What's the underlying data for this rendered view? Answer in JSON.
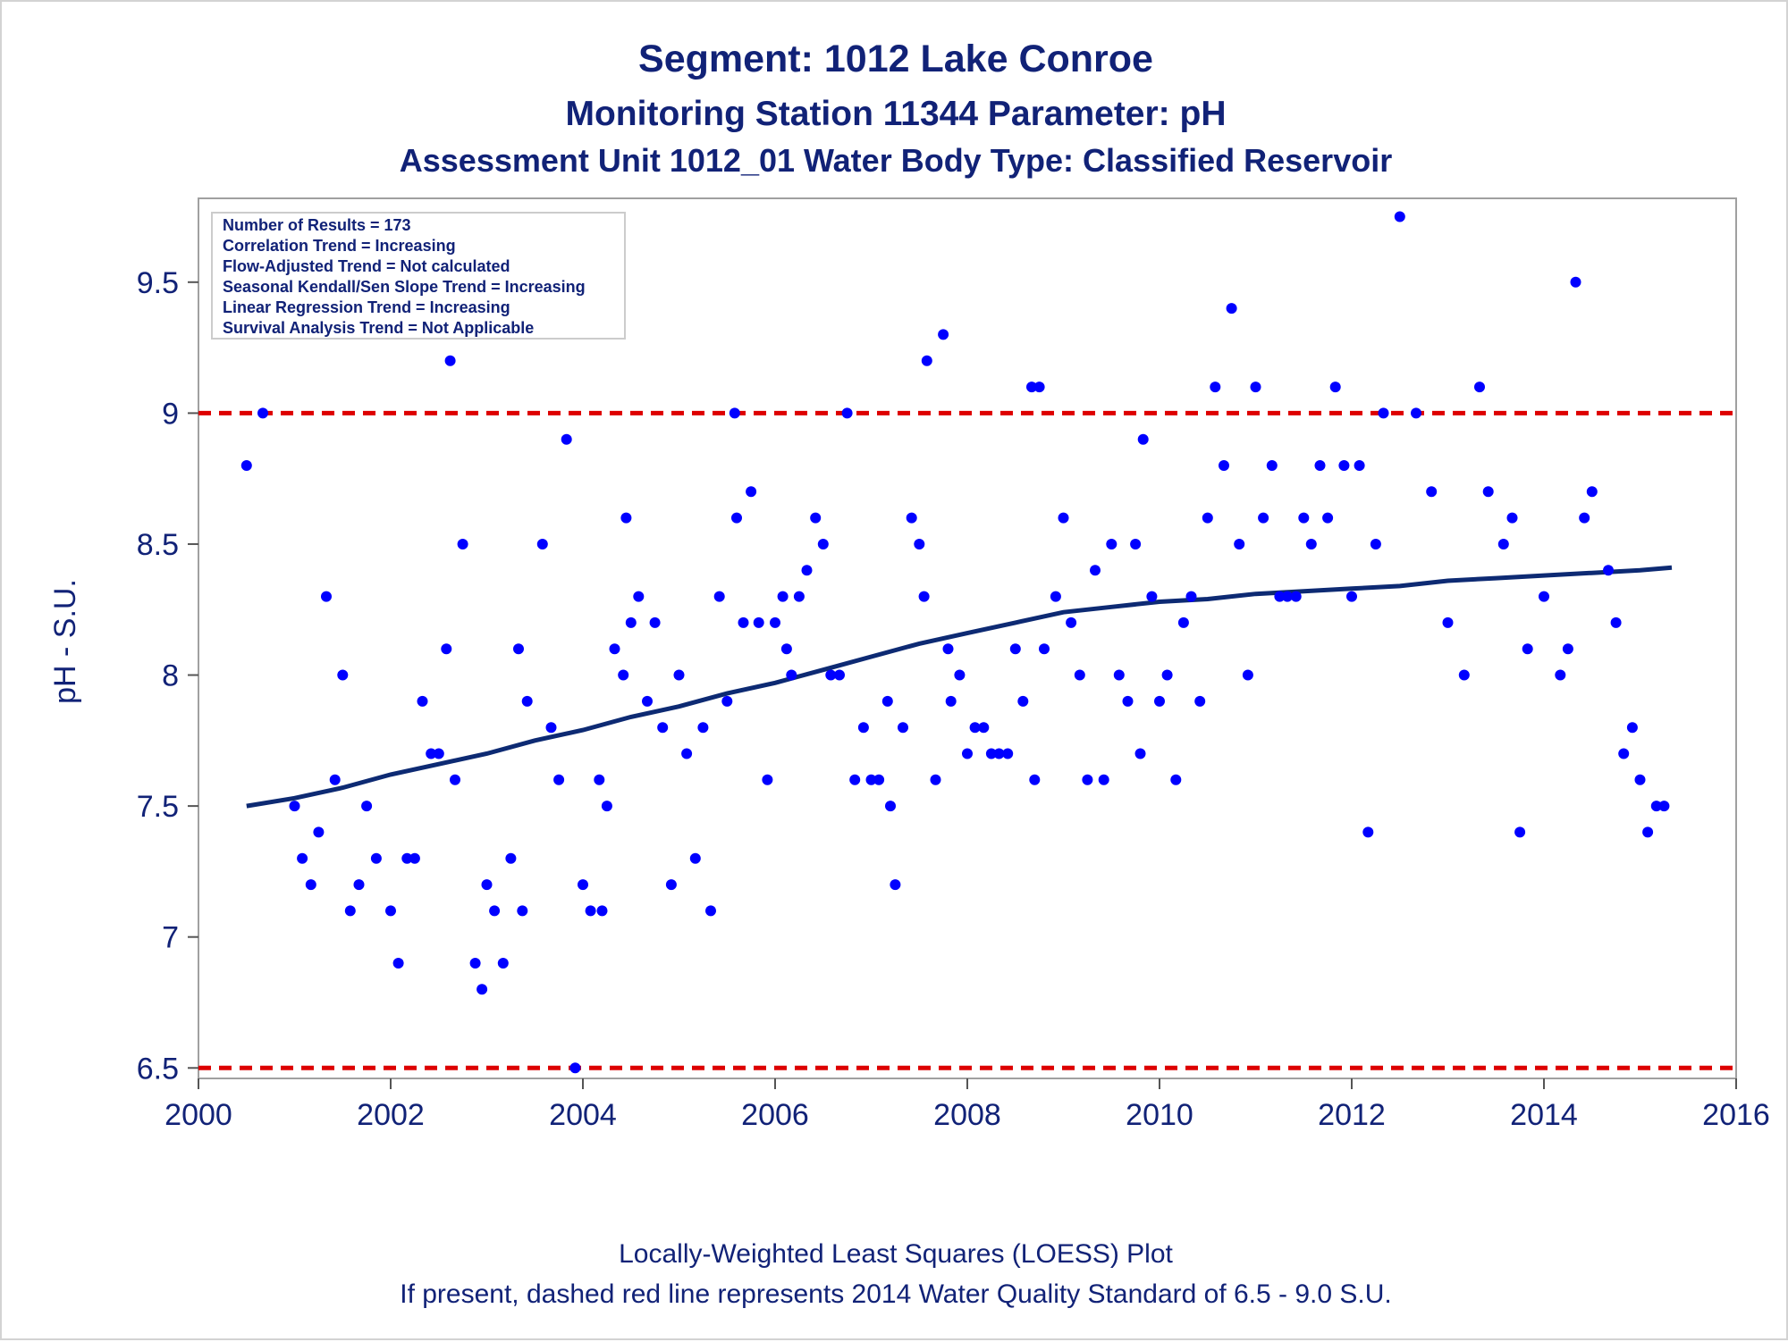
{
  "chart_data": {
    "type": "scatter",
    "title": "Segment: 1012  Lake Conroe",
    "subtitle1": "Monitoring Station 11344 Parameter: pH",
    "subtitle2": "Assessment Unit 1012_01   Water Body Type: Classified Reservoir",
    "ylabel": "pH - S.U.",
    "xlabel": "",
    "xlim": [
      2000,
      2016
    ],
    "ylim": [
      6.46,
      9.82
    ],
    "x_ticks": [
      2000,
      2002,
      2004,
      2006,
      2008,
      2010,
      2012,
      2014,
      2016
    ],
    "y_ticks": [
      6.5,
      7,
      7.5,
      8,
      8.5,
      9,
      9.5
    ],
    "y_tick_labels": [
      "6.5",
      "7",
      "7.5",
      "8",
      "8.5",
      "9",
      "9.5"
    ],
    "grid": false,
    "inset_stats": [
      "Number of Results = 173",
      "Correlation Trend = Increasing",
      "Flow-Adjusted Trend = Not calculated",
      "Seasonal Kendall/Sen Slope Trend = Increasing",
      "Linear Regression Trend = Increasing",
      "Survival Analysis Trend = Not Applicable"
    ],
    "inset_position": "top-left",
    "footnotes": [
      "Locally-Weighted Least Squares (LOESS) Plot",
      "If present, dashed red line represents 2014 Water Quality Standard of 6.5 - 9.0 S.U."
    ],
    "reference_lines": [
      {
        "y": 9.0,
        "style": "dashed",
        "color": "#dd0000"
      },
      {
        "y": 6.5,
        "style": "dashed",
        "color": "#dd0000"
      }
    ],
    "series": [
      {
        "kind": "points",
        "color": "#0000ff",
        "points": [
          [
            2000.5,
            8.8
          ],
          [
            2000.67,
            9.0
          ],
          [
            2001.0,
            7.5
          ],
          [
            2001.08,
            7.3
          ],
          [
            2001.17,
            7.2
          ],
          [
            2001.25,
            7.4
          ],
          [
            2001.33,
            8.3
          ],
          [
            2001.42,
            7.6
          ],
          [
            2001.5,
            8.0
          ],
          [
            2001.58,
            7.1
          ],
          [
            2001.67,
            7.2
          ],
          [
            2001.75,
            7.5
          ],
          [
            2001.85,
            7.3
          ],
          [
            2002.0,
            7.1
          ],
          [
            2002.08,
            6.9
          ],
          [
            2002.17,
            7.3
          ],
          [
            2002.25,
            7.3
          ],
          [
            2002.33,
            7.9
          ],
          [
            2002.42,
            7.7
          ],
          [
            2002.5,
            7.7
          ],
          [
            2002.58,
            8.1
          ],
          [
            2002.62,
            9.2
          ],
          [
            2002.67,
            7.6
          ],
          [
            2002.75,
            8.5
          ],
          [
            2002.88,
            6.9
          ],
          [
            2002.95,
            6.8
          ],
          [
            2003.0,
            7.2
          ],
          [
            2003.08,
            7.1
          ],
          [
            2003.17,
            6.9
          ],
          [
            2003.25,
            7.3
          ],
          [
            2003.33,
            8.1
          ],
          [
            2003.37,
            7.1
          ],
          [
            2003.42,
            7.9
          ],
          [
            2003.58,
            8.5
          ],
          [
            2003.67,
            7.8
          ],
          [
            2003.75,
            7.6
          ],
          [
            2003.83,
            8.9
          ],
          [
            2003.92,
            6.5
          ],
          [
            2004.0,
            7.2
          ],
          [
            2004.08,
            7.1
          ],
          [
            2004.17,
            7.6
          ],
          [
            2004.2,
            7.1
          ],
          [
            2004.25,
            7.5
          ],
          [
            2004.33,
            8.1
          ],
          [
            2004.42,
            8.0
          ],
          [
            2004.45,
            8.6
          ],
          [
            2004.5,
            8.2
          ],
          [
            2004.58,
            8.3
          ],
          [
            2004.67,
            7.9
          ],
          [
            2004.75,
            8.2
          ],
          [
            2004.83,
            7.8
          ],
          [
            2004.92,
            7.2
          ],
          [
            2005.0,
            8.0
          ],
          [
            2005.08,
            7.7
          ],
          [
            2005.17,
            7.3
          ],
          [
            2005.25,
            7.8
          ],
          [
            2005.33,
            7.1
          ],
          [
            2005.42,
            8.3
          ],
          [
            2005.5,
            7.9
          ],
          [
            2005.58,
            9.0
          ],
          [
            2005.6,
            8.6
          ],
          [
            2005.67,
            8.2
          ],
          [
            2005.75,
            8.7
          ],
          [
            2005.83,
            8.2
          ],
          [
            2005.92,
            7.6
          ],
          [
            2006.0,
            8.2
          ],
          [
            2006.08,
            8.3
          ],
          [
            2006.12,
            8.1
          ],
          [
            2006.17,
            8.0
          ],
          [
            2006.25,
            8.3
          ],
          [
            2006.33,
            8.4
          ],
          [
            2006.42,
            8.6
          ],
          [
            2006.5,
            8.5
          ],
          [
            2006.58,
            8.0
          ],
          [
            2006.67,
            8.0
          ],
          [
            2006.75,
            9.0
          ],
          [
            2006.83,
            7.6
          ],
          [
            2006.92,
            7.8
          ],
          [
            2007.0,
            7.6
          ],
          [
            2007.08,
            7.6
          ],
          [
            2007.17,
            7.9
          ],
          [
            2007.2,
            7.5
          ],
          [
            2007.25,
            7.2
          ],
          [
            2007.33,
            7.8
          ],
          [
            2007.42,
            8.6
          ],
          [
            2007.5,
            8.5
          ],
          [
            2007.55,
            8.3
          ],
          [
            2007.58,
            9.2
          ],
          [
            2007.67,
            7.6
          ],
          [
            2007.75,
            9.3
          ],
          [
            2007.8,
            8.1
          ],
          [
            2007.83,
            7.9
          ],
          [
            2007.92,
            8.0
          ],
          [
            2008.0,
            7.7
          ],
          [
            2008.08,
            7.8
          ],
          [
            2008.17,
            7.8
          ],
          [
            2008.25,
            7.7
          ],
          [
            2008.33,
            7.7
          ],
          [
            2008.42,
            7.7
          ],
          [
            2008.5,
            8.1
          ],
          [
            2008.58,
            7.9
          ],
          [
            2008.67,
            9.1
          ],
          [
            2008.7,
            7.6
          ],
          [
            2008.75,
            9.1
          ],
          [
            2008.8,
            8.1
          ],
          [
            2008.92,
            8.3
          ],
          [
            2009.0,
            8.6
          ],
          [
            2009.08,
            8.2
          ],
          [
            2009.17,
            8.0
          ],
          [
            2009.25,
            7.6
          ],
          [
            2009.33,
            8.4
          ],
          [
            2009.42,
            7.6
          ],
          [
            2009.5,
            8.5
          ],
          [
            2009.58,
            8.0
          ],
          [
            2009.67,
            7.9
          ],
          [
            2009.75,
            8.5
          ],
          [
            2009.8,
            7.7
          ],
          [
            2009.83,
            8.9
          ],
          [
            2009.92,
            8.3
          ],
          [
            2010.0,
            7.9
          ],
          [
            2010.08,
            8.0
          ],
          [
            2010.17,
            7.6
          ],
          [
            2010.25,
            8.2
          ],
          [
            2010.33,
            8.3
          ],
          [
            2010.42,
            7.9
          ],
          [
            2010.5,
            8.6
          ],
          [
            2010.58,
            9.1
          ],
          [
            2010.67,
            8.8
          ],
          [
            2010.75,
            9.4
          ],
          [
            2010.83,
            8.5
          ],
          [
            2010.92,
            8.0
          ],
          [
            2011.0,
            9.1
          ],
          [
            2011.08,
            8.6
          ],
          [
            2011.17,
            8.8
          ],
          [
            2011.25,
            8.3
          ],
          [
            2011.33,
            8.3
          ],
          [
            2011.42,
            8.3
          ],
          [
            2011.5,
            8.6
          ],
          [
            2011.58,
            8.5
          ],
          [
            2011.67,
            8.8
          ],
          [
            2011.75,
            8.6
          ],
          [
            2011.83,
            9.1
          ],
          [
            2011.92,
            8.8
          ],
          [
            2012.0,
            8.3
          ],
          [
            2012.08,
            8.8
          ],
          [
            2012.17,
            7.4
          ],
          [
            2012.25,
            8.5
          ],
          [
            2012.33,
            9.0
          ],
          [
            2012.5,
            9.75
          ],
          [
            2012.67,
            9.0
          ],
          [
            2012.83,
            8.7
          ],
          [
            2013.0,
            8.2
          ],
          [
            2013.17,
            8.0
          ],
          [
            2013.33,
            9.1
          ],
          [
            2013.42,
            8.7
          ],
          [
            2013.58,
            8.5
          ],
          [
            2013.67,
            8.6
          ],
          [
            2013.75,
            7.4
          ],
          [
            2013.83,
            8.1
          ],
          [
            2014.0,
            8.3
          ],
          [
            2014.17,
            8.0
          ],
          [
            2014.25,
            8.1
          ],
          [
            2014.33,
            9.5
          ],
          [
            2014.42,
            8.6
          ],
          [
            2014.5,
            8.7
          ],
          [
            2014.67,
            8.4
          ],
          [
            2014.75,
            8.2
          ],
          [
            2014.83,
            7.7
          ],
          [
            2014.92,
            7.8
          ],
          [
            2015.0,
            7.6
          ],
          [
            2015.08,
            7.4
          ],
          [
            2015.17,
            7.5
          ],
          [
            2015.25,
            7.5
          ]
        ]
      },
      {
        "kind": "line",
        "color": "#0d2a73",
        "points": [
          [
            2000.5,
            7.5
          ],
          [
            2001.0,
            7.53
          ],
          [
            2001.5,
            7.57
          ],
          [
            2002.0,
            7.62
          ],
          [
            2002.5,
            7.66
          ],
          [
            2003.0,
            7.7
          ],
          [
            2003.5,
            7.75
          ],
          [
            2004.0,
            7.79
          ],
          [
            2004.5,
            7.84
          ],
          [
            2005.0,
            7.88
          ],
          [
            2005.5,
            7.93
          ],
          [
            2006.0,
            7.97
          ],
          [
            2006.5,
            8.02
          ],
          [
            2007.0,
            8.07
          ],
          [
            2007.5,
            8.12
          ],
          [
            2008.0,
            8.16
          ],
          [
            2008.5,
            8.2
          ],
          [
            2009.0,
            8.24
          ],
          [
            2009.5,
            8.26
          ],
          [
            2010.0,
            8.28
          ],
          [
            2010.5,
            8.29
          ],
          [
            2011.0,
            8.31
          ],
          [
            2011.5,
            8.32
          ],
          [
            2012.0,
            8.33
          ],
          [
            2012.5,
            8.34
          ],
          [
            2013.0,
            8.36
          ],
          [
            2013.5,
            8.37
          ],
          [
            2014.0,
            8.38
          ],
          [
            2014.5,
            8.39
          ],
          [
            2015.0,
            8.4
          ],
          [
            2015.33,
            8.41
          ]
        ]
      }
    ]
  }
}
